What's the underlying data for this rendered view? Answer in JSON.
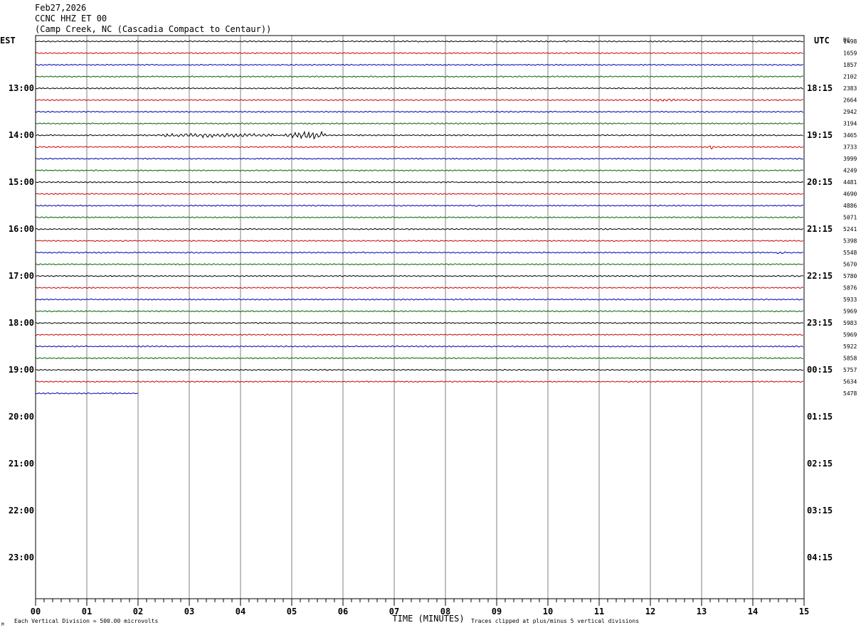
{
  "header": {
    "date": "Feb27,2026",
    "station": "CCNC HHZ ET 00",
    "location": "(Camp Creek, NC (Cascadia Compact to Centaur))"
  },
  "chart_data": {
    "type": "line",
    "subtype": "helicorder",
    "left_axis_title": "EST",
    "right_axis_title": "UTC",
    "dc_title": "DC",
    "est_hour_labels": [
      "13:00",
      "14:00",
      "15:00",
      "16:00",
      "17:00",
      "18:00",
      "19:00",
      "20:00",
      "21:00",
      "22:00",
      "23:00"
    ],
    "utc_hour_labels": [
      "18:15",
      "19:15",
      "20:15",
      "21:15",
      "22:15",
      "23:15",
      "00:15",
      "01:15",
      "02:15",
      "03:15",
      "04:15"
    ],
    "x_tick_labels": [
      "00",
      "01",
      "02",
      "03",
      "04",
      "05",
      "06",
      "07",
      "08",
      "09",
      "10",
      "11",
      "12",
      "13",
      "14",
      "15"
    ],
    "xlabel": "TIME (MINUTES)",
    "xlim": [
      0,
      15
    ],
    "rows_total": 48,
    "first_hour_start_row": 4,
    "trace_colors": [
      "#000000",
      "#d00000",
      "#0000b0",
      "#006400"
    ],
    "dc_offsets": [
      1498,
      1659,
      1857,
      2102,
      2383,
      2664,
      2942,
      3194,
      3465,
      3733,
      3999,
      4249,
      4481,
      4690,
      4886,
      5071,
      5241,
      5398,
      5548,
      5670,
      5780,
      5876,
      5933,
      5969,
      5983,
      5969,
      5922,
      5858,
      5757,
      5634,
      5478
    ],
    "last_trace_end_minute": 2,
    "events": [
      {
        "row": 5,
        "minute_start": 11.0,
        "minute_end": 15.0,
        "amplitude": 1.8
      },
      {
        "row": 7,
        "minute_start": 7.5,
        "minute_end": 8.3,
        "amplitude": 1.4
      },
      {
        "row": 8,
        "minute_start": 1.8,
        "minute_end": 7.1,
        "amplitude": 3.0
      },
      {
        "row": 8,
        "minute_start": 4.8,
        "minute_end": 6.4,
        "amplitude": 6.5
      },
      {
        "row": 9,
        "minute_start": 13.15,
        "minute_end": 13.3,
        "amplitude": 3.5
      },
      {
        "row": 18,
        "minute_start": 14.4,
        "minute_end": 15.0,
        "amplitude": 2.0
      }
    ],
    "scale_note": "Each Vertical Division =  500.00 microvolts",
    "clip_note": "Traces clipped at plus/minus 5 vertical divisions",
    "corner_mark": "M"
  }
}
